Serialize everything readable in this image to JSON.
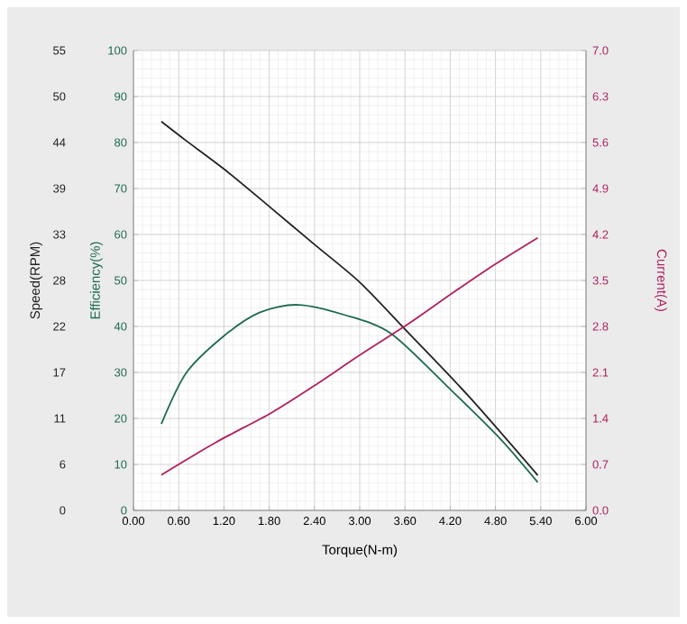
{
  "chart_data": {
    "type": "line",
    "xlabel": "Torque(N-m)",
    "ylabel": "Speed(RPM)",
    "y2label": "Efficiency(%)",
    "y3label": "Current(A)",
    "xlim": [
      0,
      6
    ],
    "xticks": [
      {
        "value": 0,
        "label": "0.00"
      },
      {
        "value": 0.6,
        "label": "0.60"
      },
      {
        "value": 1.2,
        "label": "1.20"
      },
      {
        "value": 1.8,
        "label": "1.80"
      },
      {
        "value": 2.4,
        "label": "2.40"
      },
      {
        "value": 3,
        "label": "3.00"
      },
      {
        "value": 3.6,
        "label": "3.60"
      },
      {
        "value": 4.2,
        "label": "4.20"
      },
      {
        "value": 4.8,
        "label": "4.80"
      },
      {
        "value": 5.4,
        "label": "5.40"
      },
      {
        "value": 6,
        "label": "6.00"
      }
    ],
    "ylim": [
      0,
      55
    ],
    "yticks": [
      0,
      {
        "value": 5.5,
        "label": "6"
      },
      11,
      {
        "value": 16.5,
        "label": "17"
      },
      22,
      {
        "value": 27.5,
        "label": "28"
      },
      33,
      {
        "value": 38.5,
        "label": "39"
      },
      44,
      {
        "value": 49.5,
        "label": "50"
      },
      55
    ],
    "y2lim": [
      0,
      100
    ],
    "y2ticks": [
      0,
      10,
      20,
      30,
      40,
      50,
      60,
      70,
      80,
      90,
      100
    ],
    "y3lim": [
      0,
      7
    ],
    "y3ticks": [
      {
        "value": 0,
        "label": "0.0"
      },
      0.7,
      1.4,
      2.1,
      2.8,
      3.5,
      4.2,
      4.9,
      5.6,
      6.3,
      {
        "value": 7,
        "label": "7.0"
      }
    ],
    "grid": true,
    "series": [
      {
        "color": "#222222",
        "axis": "y",
        "x": [
          0.37,
          0.7,
          1.19,
          1.82,
          2.4,
          3.01,
          3.66,
          4.45,
          5.36
        ],
        "values": [
          46.5,
          44.2,
          40.9,
          36.2,
          31.8,
          27.2,
          21.1,
          13.6,
          4.2
        ]
      },
      {
        "color": "#1e6b4e",
        "axis": "y2",
        "x": [
          0.37,
          0.7,
          1.19,
          1.67,
          2.18,
          2.8,
          3.42,
          4.22,
          4.86,
          5.36
        ],
        "values": [
          18.8,
          29.9,
          37.8,
          43.0,
          44.7,
          42.5,
          38.4,
          26.0,
          15.6,
          6.1
        ]
      },
      {
        "color": "#b0205f",
        "axis": "y3",
        "x": [
          0.37,
          1.1,
          1.82,
          2.4,
          3.01,
          3.66,
          4.22,
          4.8,
          5.36
        ],
        "values": [
          0.54,
          1.04,
          1.48,
          1.9,
          2.37,
          2.85,
          3.3,
          3.75,
          4.15
        ]
      }
    ]
  }
}
